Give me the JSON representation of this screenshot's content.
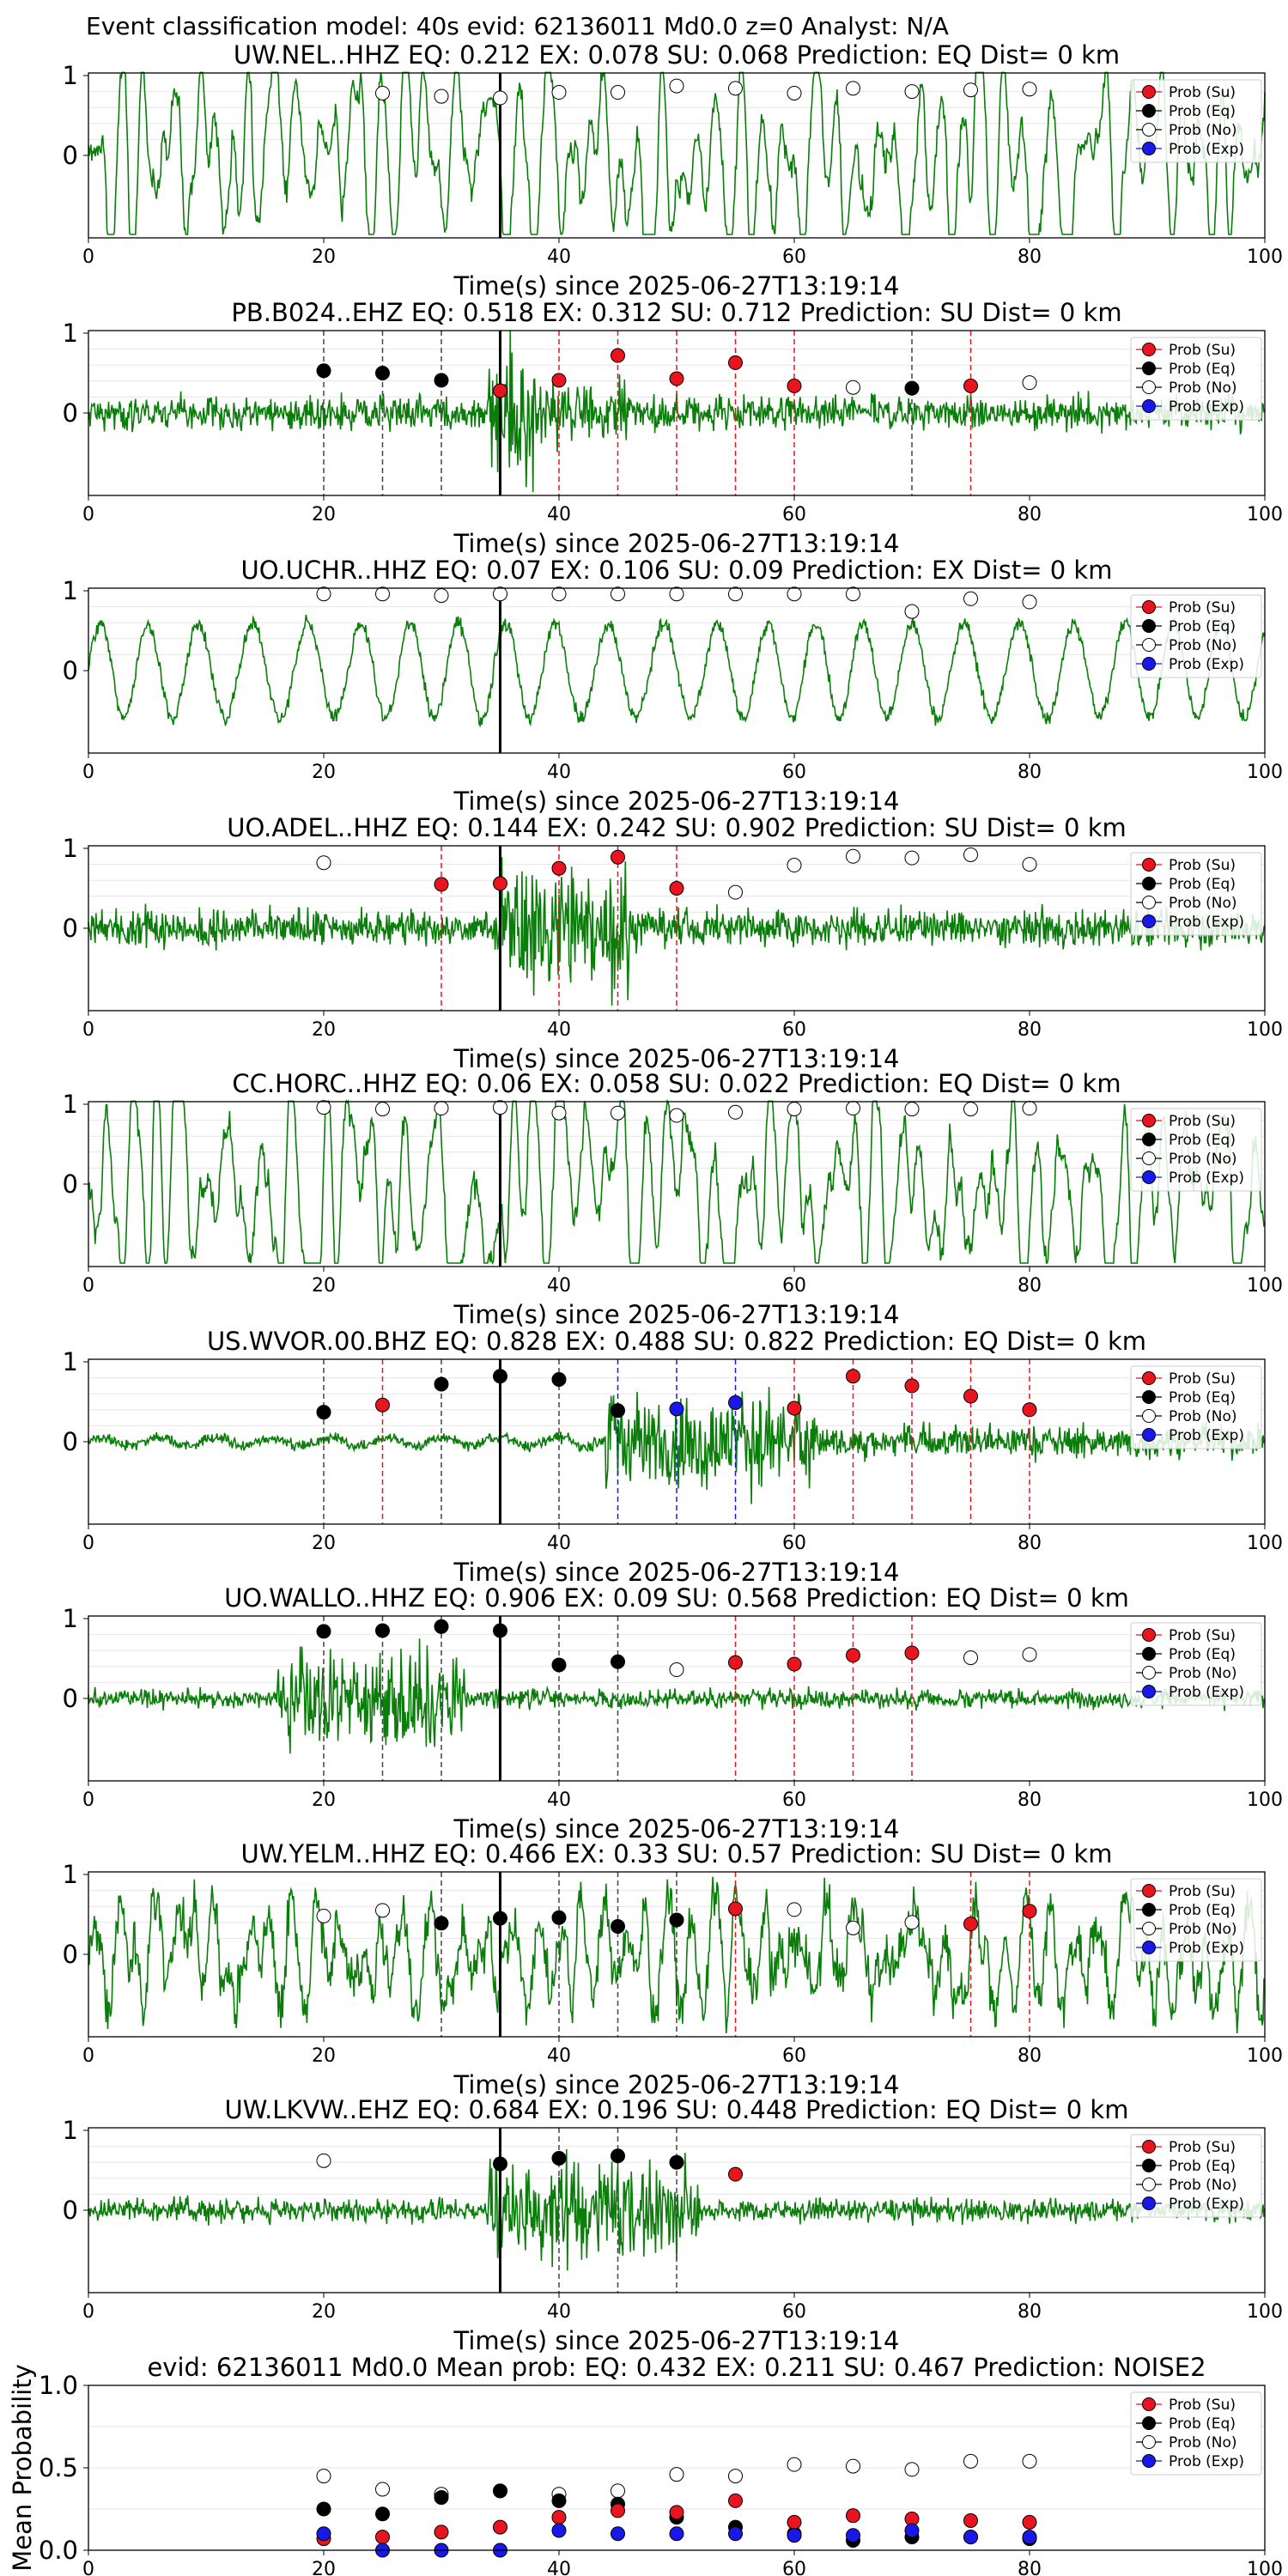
{
  "suptitle": "Event classification model: 40s evid: 62136011 Md0.0 z=0 Analyst: N/A",
  "chart_data": {
    "type": "scatter",
    "colors": {
      "su": "#e8141e",
      "eq": "#000000",
      "no": "#ffffff",
      "exp": "#1818e8",
      "wave": "#0a7d0a"
    },
    "xlim": [
      0,
      100
    ],
    "xticks": [
      "0",
      "20",
      "40",
      "60",
      "80",
      "100"
    ],
    "yticks": [
      "1",
      "0"
    ],
    "xlabel": "Time(s) since 2025-06-27T13:19:14",
    "legend": [
      "Prob (Su)",
      "Prob (Eq)",
      "Prob (No)",
      "Prob (Exp)"
    ],
    "legend_placement": "top-right",
    "pick_time": 35,
    "panels": [
      {
        "title": "UW.NEL..HHZ   EQ: 0.212  EX: 0.078  SU: 0.068   Prediction: EQ    Dist= 0 km",
        "wave_style": "lowfreq",
        "su": [],
        "eq": [],
        "exp": [],
        "no": [
          [
            25,
            0.78
          ],
          [
            30,
            0.74
          ],
          [
            35,
            0.72
          ],
          [
            40,
            0.79
          ],
          [
            45,
            0.79
          ],
          [
            50,
            0.87
          ],
          [
            55,
            0.84
          ],
          [
            60,
            0.78
          ],
          [
            65,
            0.84
          ],
          [
            70,
            0.8
          ],
          [
            75,
            0.82
          ],
          [
            80,
            0.83
          ]
        ],
        "vlines": []
      },
      {
        "title": "PB.B024..EHZ   EQ: 0.518  EX: 0.312  SU: 0.712   Prediction: SU    Dist= 0 km",
        "wave_style": "mixed",
        "su": [
          [
            35,
            0.28
          ],
          [
            40,
            0.41
          ],
          [
            45,
            0.72
          ],
          [
            50,
            0.43
          ],
          [
            55,
            0.63
          ],
          [
            60,
            0.34
          ],
          [
            75,
            0.34
          ]
        ],
        "eq": [
          [
            20,
            0.53
          ],
          [
            25,
            0.5
          ],
          [
            30,
            0.41
          ],
          [
            70,
            0.31
          ]
        ],
        "no": [
          [
            65,
            0.32
          ],
          [
            80,
            0.38
          ]
        ],
        "exp": [],
        "vlines": [
          [
            20,
            "eq"
          ],
          [
            25,
            "eq"
          ],
          [
            30,
            "eq"
          ],
          [
            40,
            "su"
          ],
          [
            45,
            "su"
          ],
          [
            50,
            "su"
          ],
          [
            55,
            "su"
          ],
          [
            60,
            "su"
          ],
          [
            70,
            "eq"
          ],
          [
            75,
            "su"
          ]
        ]
      },
      {
        "title": "UO.UCHR..HHZ   EQ: 0.07  EX: 0.106  SU: 0.09   Prediction: EX    Dist= 0 km",
        "wave_style": "sine",
        "su": [],
        "eq": [],
        "exp": [],
        "no": [
          [
            20,
            0.96
          ],
          [
            25,
            0.96
          ],
          [
            30,
            0.94
          ],
          [
            35,
            0.96
          ],
          [
            40,
            0.96
          ],
          [
            45,
            0.96
          ],
          [
            50,
            0.96
          ],
          [
            55,
            0.96
          ],
          [
            60,
            0.96
          ],
          [
            65,
            0.96
          ],
          [
            70,
            0.74
          ],
          [
            75,
            0.9
          ],
          [
            80,
            0.86
          ]
        ],
        "vlines": []
      },
      {
        "title": "UO.ADEL..HHZ   EQ: 0.144  EX: 0.242  SU: 0.902   Prediction: SU    Dist= 0 km",
        "wave_style": "burst",
        "su": [
          [
            30,
            0.55
          ],
          [
            35,
            0.56
          ],
          [
            40,
            0.75
          ],
          [
            45,
            0.89
          ],
          [
            50,
            0.5
          ]
        ],
        "eq": [],
        "no": [
          [
            20,
            0.82
          ],
          [
            55,
            0.45
          ],
          [
            60,
            0.79
          ],
          [
            65,
            0.9
          ],
          [
            70,
            0.88
          ],
          [
            75,
            0.92
          ],
          [
            80,
            0.8
          ]
        ],
        "exp": [],
        "vlines": [
          [
            30,
            "su"
          ],
          [
            40,
            "su"
          ],
          [
            45,
            "su"
          ],
          [
            50,
            "su"
          ]
        ]
      },
      {
        "title": "CC.HORC..HHZ   EQ: 0.06  EX: 0.058  SU: 0.022   Prediction: EQ    Dist= 0 km",
        "wave_style": "lowfreq",
        "su": [],
        "eq": [],
        "exp": [],
        "no": [
          [
            20,
            0.96
          ],
          [
            25,
            0.94
          ],
          [
            30,
            0.95
          ],
          [
            35,
            0.96
          ],
          [
            40,
            0.89
          ],
          [
            45,
            0.89
          ],
          [
            50,
            0.86
          ],
          [
            55,
            0.9
          ],
          [
            60,
            0.94
          ],
          [
            65,
            0.95
          ],
          [
            70,
            0.94
          ],
          [
            75,
            0.94
          ],
          [
            80,
            0.95
          ]
        ],
        "vlines": []
      },
      {
        "title": "US.WVOR.00.BHZ   EQ: 0.828  EX: 0.488  SU: 0.822   Prediction: EQ    Dist= 0 km",
        "wave_style": "quietburst",
        "su": [
          [
            25,
            0.46
          ],
          [
            60,
            0.42
          ],
          [
            65,
            0.82
          ],
          [
            70,
            0.7
          ],
          [
            75,
            0.57
          ],
          [
            80,
            0.4
          ]
        ],
        "eq": [
          [
            20,
            0.37
          ],
          [
            30,
            0.72
          ],
          [
            35,
            0.82
          ],
          [
            40,
            0.78
          ],
          [
            45,
            0.39
          ]
        ],
        "no": [],
        "exp": [
          [
            50,
            0.41
          ],
          [
            55,
            0.49
          ]
        ],
        "vlines": [
          [
            20,
            "eq"
          ],
          [
            25,
            "su"
          ],
          [
            30,
            "eq"
          ],
          [
            40,
            "eq"
          ],
          [
            45,
            "exp"
          ],
          [
            50,
            "exp"
          ],
          [
            55,
            "exp"
          ],
          [
            60,
            "su"
          ],
          [
            65,
            "su"
          ],
          [
            70,
            "su"
          ],
          [
            75,
            "su"
          ],
          [
            80,
            "su"
          ]
        ]
      },
      {
        "title": "UO.WALLO..HHZ   EQ: 0.906  EX: 0.09  SU: 0.568   Prediction: EQ    Dist= 0 km",
        "wave_style": "earlyburst",
        "su": [
          [
            55,
            0.45
          ],
          [
            60,
            0.43
          ],
          [
            65,
            0.54
          ],
          [
            70,
            0.57
          ]
        ],
        "eq": [
          [
            20,
            0.84
          ],
          [
            25,
            0.85
          ],
          [
            30,
            0.9
          ],
          [
            35,
            0.85
          ],
          [
            40,
            0.42
          ],
          [
            45,
            0.46
          ]
        ],
        "no": [
          [
            50,
            0.36
          ],
          [
            75,
            0.51
          ],
          [
            80,
            0.55
          ]
        ],
        "exp": [],
        "vlines": [
          [
            20,
            "eq"
          ],
          [
            25,
            "eq"
          ],
          [
            30,
            "eq"
          ],
          [
            40,
            "eq"
          ],
          [
            45,
            "eq"
          ],
          [
            55,
            "su"
          ],
          [
            60,
            "su"
          ],
          [
            65,
            "su"
          ],
          [
            70,
            "su"
          ]
        ]
      },
      {
        "title": "UW.YELM..HHZ   EQ: 0.466  EX: 0.33  SU: 0.57   Prediction: SU    Dist= 0 km",
        "wave_style": "noisy",
        "su": [
          [
            55,
            0.57
          ],
          [
            75,
            0.38
          ],
          [
            80,
            0.54
          ]
        ],
        "eq": [
          [
            30,
            0.39
          ],
          [
            35,
            0.45
          ],
          [
            40,
            0.46
          ],
          [
            45,
            0.35
          ],
          [
            50,
            0.43
          ]
        ],
        "no": [
          [
            20,
            0.48
          ],
          [
            25,
            0.55
          ],
          [
            60,
            0.56
          ],
          [
            65,
            0.33
          ],
          [
            70,
            0.4
          ]
        ],
        "exp": [],
        "vlines": [
          [
            30,
            "eq"
          ],
          [
            40,
            "eq"
          ],
          [
            45,
            "eq"
          ],
          [
            50,
            "eq"
          ],
          [
            55,
            "su"
          ],
          [
            75,
            "su"
          ],
          [
            80,
            "su"
          ]
        ]
      },
      {
        "title": "UW.LKVW..EHZ   EQ: 0.684  EX: 0.196  SU: 0.448   Prediction: EQ    Dist= 0 km",
        "wave_style": "hfburst",
        "su": [
          [
            55,
            0.45
          ]
        ],
        "eq": [
          [
            35,
            0.58
          ],
          [
            40,
            0.65
          ],
          [
            45,
            0.68
          ],
          [
            50,
            0.6
          ]
        ],
        "no": [
          [
            20,
            0.62
          ]
        ],
        "exp": [],
        "vlines": [
          [
            40,
            "eq"
          ],
          [
            45,
            "eq"
          ],
          [
            50,
            "eq"
          ]
        ]
      }
    ],
    "summary": {
      "title": "evid: 62136011  Md0.0   Mean prob:    EQ: 0.432  EX: 0.211  SU: 0.467   Prediction: NOISE2",
      "ylabel": "Mean Probability",
      "ylim": [
        0,
        1
      ],
      "yticks": [
        "1.0",
        "0.5",
        "0.0"
      ],
      "no": [
        [
          20,
          0.45
        ],
        [
          25,
          0.37
        ],
        [
          30,
          0.34
        ],
        [
          35,
          0.36
        ],
        [
          40,
          0.34
        ],
        [
          45,
          0.36
        ],
        [
          50,
          0.46
        ],
        [
          55,
          0.45
        ],
        [
          60,
          0.52
        ],
        [
          65,
          0.51
        ],
        [
          70,
          0.49
        ],
        [
          75,
          0.54
        ],
        [
          80,
          0.54
        ]
      ],
      "eq": [
        [
          20,
          0.25
        ],
        [
          25,
          0.22
        ],
        [
          30,
          0.32
        ],
        [
          35,
          0.36
        ],
        [
          40,
          0.3
        ],
        [
          45,
          0.28
        ],
        [
          50,
          0.2
        ],
        [
          55,
          0.14
        ],
        [
          60,
          0.1
        ],
        [
          65,
          0.06
        ],
        [
          70,
          0.08
        ],
        [
          75,
          0.08
        ],
        [
          80,
          0.07
        ]
      ],
      "su": [
        [
          20,
          0.07
        ],
        [
          25,
          0.08
        ],
        [
          30,
          0.11
        ],
        [
          35,
          0.14
        ],
        [
          40,
          0.2
        ],
        [
          45,
          0.24
        ],
        [
          50,
          0.23
        ],
        [
          55,
          0.3
        ],
        [
          60,
          0.17
        ],
        [
          65,
          0.21
        ],
        [
          70,
          0.19
        ],
        [
          75,
          0.18
        ],
        [
          80,
          0.17
        ]
      ],
      "exp": [
        [
          20,
          0.1
        ],
        [
          25,
          0.0
        ],
        [
          30,
          0.0
        ],
        [
          35,
          0.0
        ],
        [
          40,
          0.12
        ],
        [
          45,
          0.1
        ],
        [
          50,
          0.1
        ],
        [
          55,
          0.1
        ],
        [
          60,
          0.09
        ],
        [
          65,
          0.09
        ],
        [
          70,
          0.12
        ],
        [
          75,
          0.08
        ],
        [
          80,
          0.08
        ]
      ]
    }
  }
}
